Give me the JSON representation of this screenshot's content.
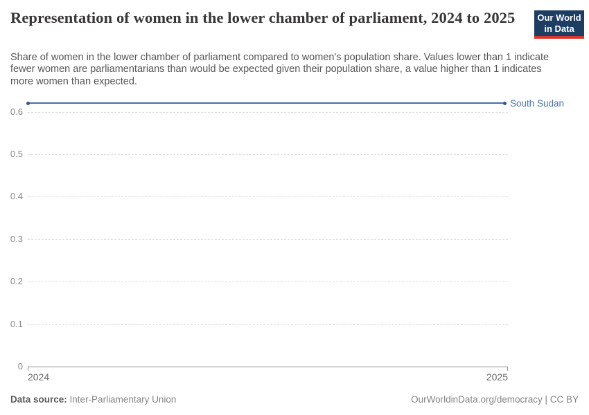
{
  "header": {
    "title": "Representation of women in the lower chamber of parliament, 2024 to 2025",
    "subtitle": "Share of women in the lower chamber of parliament compared to women's population share. Values lower than 1 indicate fewer women are parliamentarians than would be expected given their population share, a value higher than 1 indicates more women than expected.",
    "logo": {
      "line1": "Our World",
      "line2": "in Data",
      "bg_color": "#1d3d63",
      "accent_color": "#d8352c"
    }
  },
  "chart_data": {
    "type": "line",
    "title": "Representation of women in the lower chamber of parliament, 2024 to 2025",
    "x": [
      2024,
      2025
    ],
    "xtick_labels": [
      "2024",
      "2025"
    ],
    "series": [
      {
        "name": "South Sudan",
        "values": [
          0.62,
          0.62
        ],
        "color": "#4c6ca8",
        "marker_color": "#35568f",
        "label_color": "#4673af"
      }
    ],
    "xlabel": "",
    "ylabel": "",
    "ylim": [
      0,
      0.65
    ],
    "yticks": [
      0,
      0.1,
      0.2,
      0.3,
      0.4,
      0.5,
      0.6
    ],
    "ytick_labels": [
      "0",
      "0.1",
      "0.2",
      "0.3",
      "0.4",
      "0.5",
      "0.6"
    ],
    "grid": "horizontal-dashed",
    "legend_position": "right-end-of-line"
  },
  "footer": {
    "datasource_label": "Data source:",
    "datasource_value": "Inter-Parliamentary Union",
    "attribution": "OurWorldinData.org/democracy | CC BY"
  }
}
